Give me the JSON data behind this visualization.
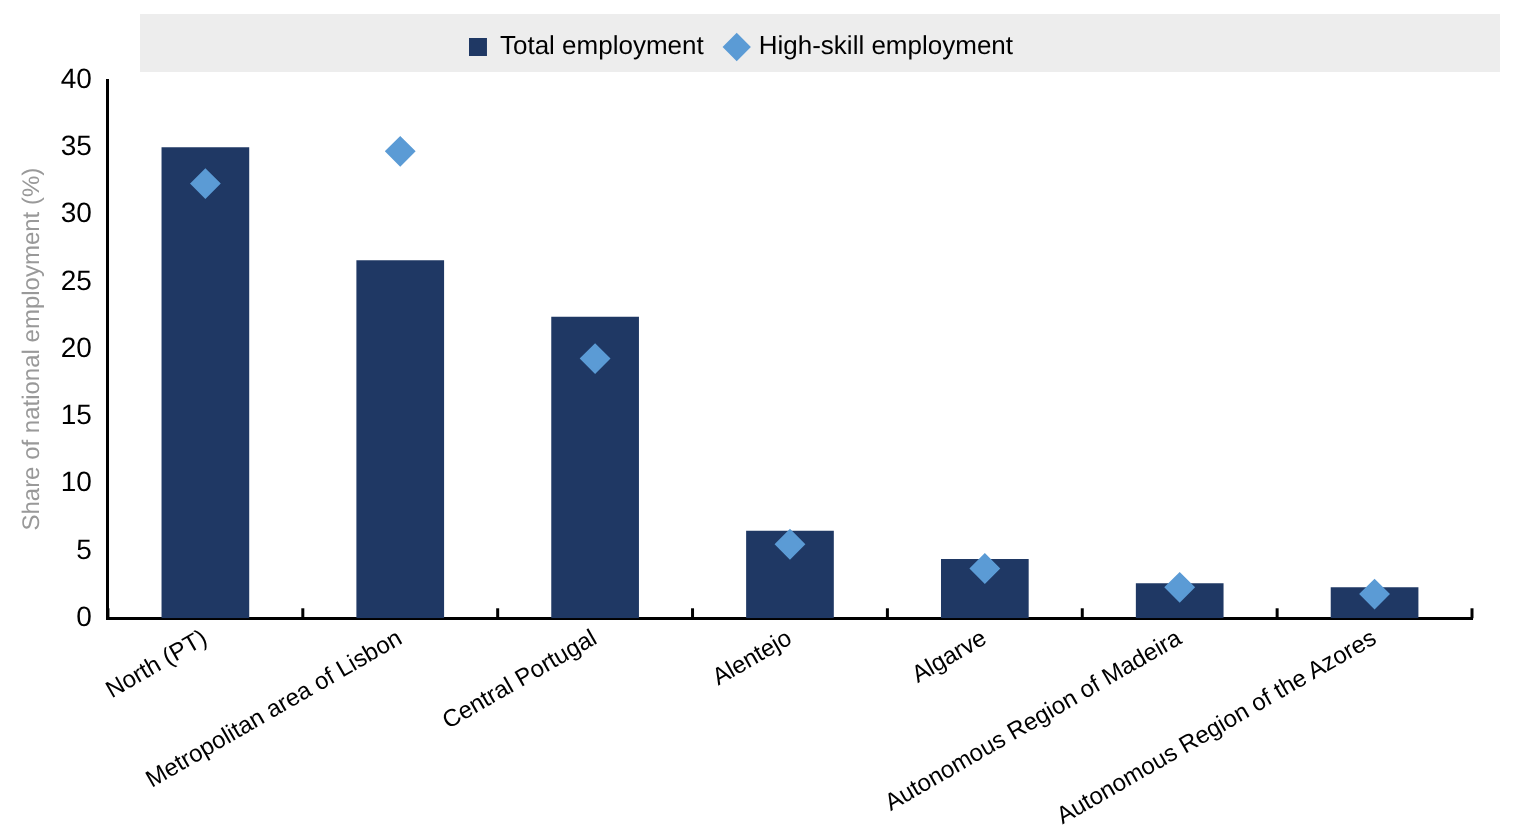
{
  "chart_data": {
    "type": "bar",
    "ylabel": "Share of national employment (%)",
    "categories": [
      "North (PT)",
      "Metropolitan area of Lisbon",
      "Central Portugal",
      "Alentejo",
      "Algarve",
      "Autonomous Region of Madeira",
      "Autonomous Region of the Azores"
    ],
    "series": [
      {
        "name": "Total employment",
        "color": "#1f3864",
        "values": [
          35,
          26.6,
          22.4,
          6.5,
          4.4,
          2.6,
          2.3
        ]
      },
      {
        "name": "High-skill employment",
        "type": "scatter",
        "color": "#5b9bd5",
        "values": [
          32.3,
          34.7,
          19.3,
          5.5,
          3.7,
          2.3,
          1.8
        ]
      }
    ],
    "ylim": [
      0,
      40
    ],
    "yticks": [
      0,
      5,
      10,
      15,
      20,
      25,
      30,
      35,
      40
    ],
    "grid": false,
    "legend": "top",
    "marker": "diamond"
  }
}
